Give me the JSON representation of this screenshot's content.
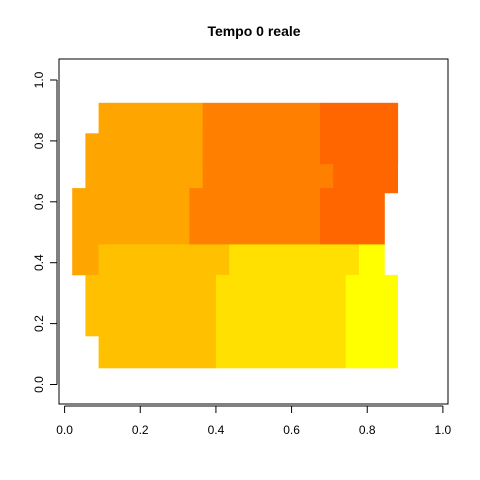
{
  "chart_data": {
    "type": "heatmap",
    "title": "Tempo 0 reale",
    "xlabel": "",
    "ylabel": "",
    "xlim": [
      -0.04,
      1.04
    ],
    "ylim": [
      -0.04,
      1.04
    ],
    "x_ticks": [
      "0.0",
      "0.2",
      "0.4",
      "0.6",
      "0.8",
      "1.0"
    ],
    "y_ticks": [
      "0.0",
      "0.2",
      "0.4",
      "0.6",
      "0.8",
      "1.0"
    ],
    "grid": false,
    "legend": "none",
    "colors": {
      "orange_light": "#FFA500",
      "orange_dark": "#FF8000",
      "red_orange": "#FF6600",
      "amber": "#FFC000",
      "gold": "#FFE000",
      "yellow": "#FFFF00"
    },
    "cells": [
      {
        "x0": 0.09,
        "x1": 0.366,
        "y0": 0.63,
        "y1": 0.925,
        "color": "orange_light"
      },
      {
        "x0": 0.055,
        "x1": 0.09,
        "y0": 0.63,
        "y1": 0.825,
        "color": "orange_light"
      },
      {
        "x0": 0.365,
        "x1": 0.675,
        "y0": 0.725,
        "y1": 0.925,
        "color": "orange_dark"
      },
      {
        "x0": 0.365,
        "x1": 0.71,
        "y0": 0.63,
        "y1": 0.825,
        "color": "orange_dark"
      },
      {
        "x0": 0.675,
        "x1": 0.88,
        "y0": 0.725,
        "y1": 0.925,
        "color": "red_orange"
      },
      {
        "x0": 0.71,
        "x1": 0.88,
        "y0": 0.63,
        "y1": 0.825,
        "color": "red_orange"
      },
      {
        "x0": 0.02,
        "x1": 0.33,
        "y0": 0.46,
        "y1": 0.645,
        "color": "orange_light"
      },
      {
        "x0": 0.02,
        "x1": 0.09,
        "y0": 0.36,
        "y1": 0.46,
        "color": "orange_light"
      },
      {
        "x0": 0.33,
        "x1": 0.675,
        "y0": 0.46,
        "y1": 0.645,
        "color": "orange_dark"
      },
      {
        "x0": 0.675,
        "x1": 0.845,
        "y0": 0.46,
        "y1": 0.645,
        "color": "red_orange"
      },
      {
        "x0": 0.09,
        "x1": 0.435,
        "y0": 0.36,
        "y1": 0.46,
        "color": "amber"
      },
      {
        "x0": 0.055,
        "x1": 0.4,
        "y0": 0.16,
        "y1": 0.36,
        "color": "amber"
      },
      {
        "x0": 0.09,
        "x1": 0.4,
        "y0": 0.055,
        "y1": 0.16,
        "color": "amber"
      },
      {
        "x0": 0.435,
        "x1": 0.778,
        "y0": 0.36,
        "y1": 0.46,
        "color": "gold"
      },
      {
        "x0": 0.4,
        "x1": 0.743,
        "y0": 0.055,
        "y1": 0.36,
        "color": "gold"
      },
      {
        "x0": 0.778,
        "x1": 0.845,
        "y0": 0.36,
        "y1": 0.46,
        "color": "yellow"
      },
      {
        "x0": 0.743,
        "x1": 0.88,
        "y0": 0.055,
        "y1": 0.36,
        "color": "yellow"
      }
    ]
  }
}
